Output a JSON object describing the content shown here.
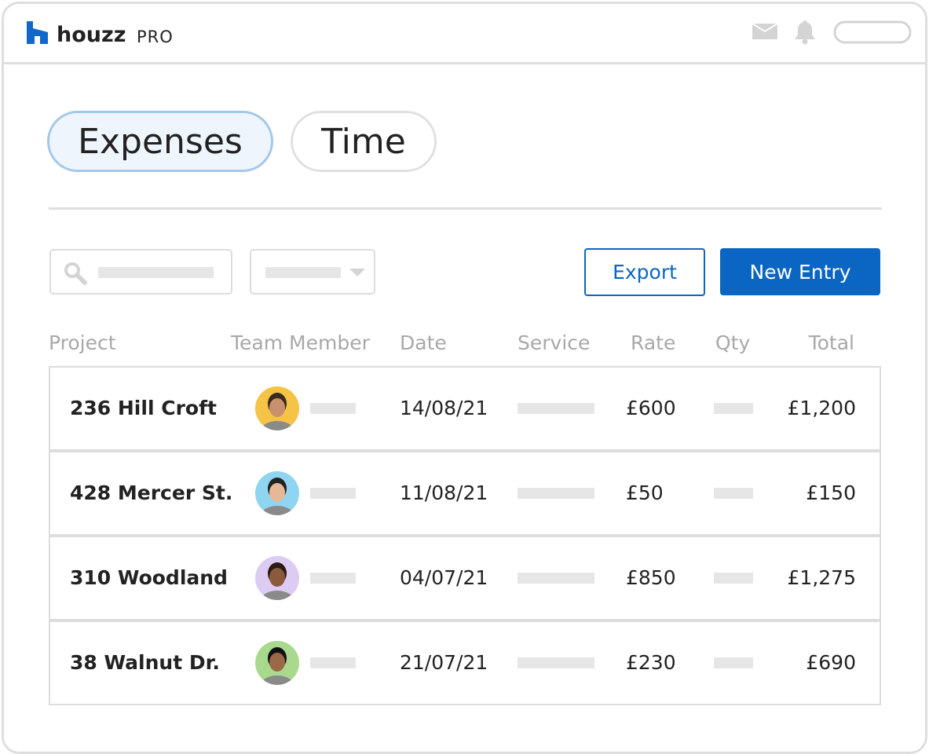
{
  "header": {
    "logo": "houzz",
    "product": "PRO"
  },
  "tabs": [
    "Expenses",
    "Time"
  ],
  "buttons": {
    "export": "Export",
    "new_entry": "New Entry"
  },
  "table": {
    "columns": [
      "Project",
      "Team Member",
      "Date",
      "Service",
      "Rate",
      "Qty",
      "Total"
    ],
    "rows": [
      {
        "project": "236 Hill Croft",
        "date": "14/08/21",
        "rate": "£600",
        "total": "£1,200"
      },
      {
        "project": "428 Mercer St.",
        "date": "11/08/21",
        "rate": "£50",
        "total": "£150"
      },
      {
        "project": "310 Woodland",
        "date": "04/07/21",
        "rate": "£850",
        "total": "£1,275"
      },
      {
        "project": "38 Walnut Dr.",
        "date": "21/07/21",
        "rate": "£230",
        "total": "£690"
      }
    ]
  }
}
